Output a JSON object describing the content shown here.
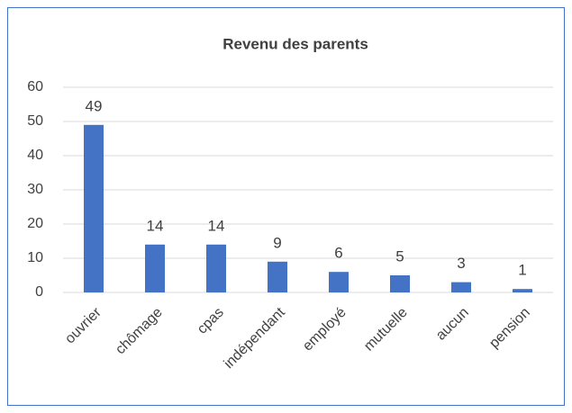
{
  "chart_data": {
    "type": "bar",
    "title": "Revenu des parents",
    "categories": [
      "ouvrier",
      "chômage",
      "cpas",
      "indépendant",
      "employé",
      "mutuelle",
      "aucun",
      "pension"
    ],
    "values": [
      49,
      14,
      14,
      9,
      6,
      5,
      3,
      1
    ],
    "color": "#4472c4",
    "ylim": [
      0,
      60
    ],
    "yticks": [
      0,
      10,
      20,
      30,
      40,
      50,
      60
    ],
    "grid": true,
    "data_labels": true
  }
}
